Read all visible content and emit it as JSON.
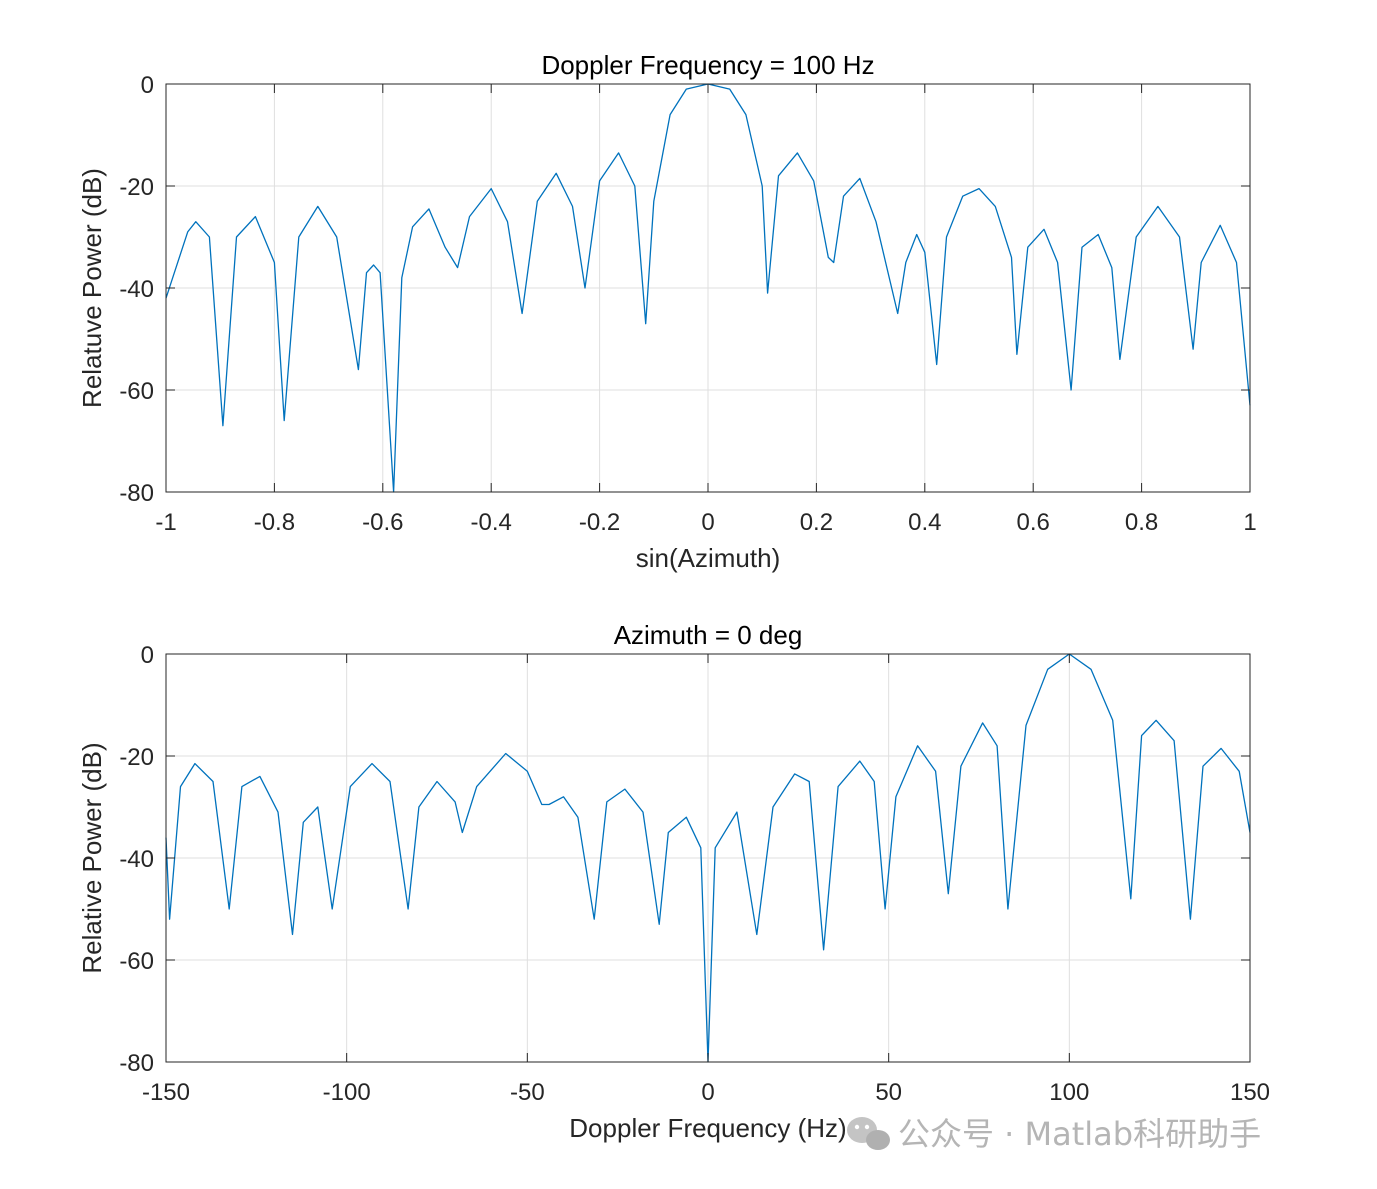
{
  "watermark": {
    "text": "公众号 · Matlab科研助手",
    "icon": "wechat-icon"
  },
  "chart_data": [
    {
      "type": "line",
      "title": "Doppler Frequency = 100 Hz",
      "xlabel": "sin(Azimuth)",
      "ylabel": "Relatuve Power (dB)",
      "xlim": [
        -1,
        1
      ],
      "ylim": [
        -80,
        0
      ],
      "xticks": [
        -1,
        -0.8,
        -0.6,
        -0.4,
        -0.2,
        0,
        0.2,
        0.4,
        0.6,
        0.8,
        1
      ],
      "xtick_labels": [
        "-1",
        "-0.8",
        "-0.6",
        "-0.4",
        "-0.2",
        "0",
        "0.2",
        "0.4",
        "0.6",
        "0.8",
        "1"
      ],
      "yticks": [
        0,
        -20,
        -40,
        -60,
        -80
      ],
      "ytick_labels": [
        "0",
        "-20",
        "-40",
        "-60",
        "-80"
      ],
      "grid": true,
      "series": [
        {
          "color": "#0072bd",
          "x": [
            -1.0,
            -0.96,
            -0.945,
            -0.92,
            -0.895,
            -0.87,
            -0.835,
            -0.8,
            -0.782,
            -0.755,
            -0.72,
            -0.685,
            -0.645,
            -0.63,
            -0.617,
            -0.605,
            -0.58,
            -0.565,
            -0.545,
            -0.515,
            -0.485,
            -0.462,
            -0.44,
            -0.4,
            -0.37,
            -0.343,
            -0.315,
            -0.28,
            -0.25,
            -0.227,
            -0.2,
            -0.165,
            -0.135,
            -0.115,
            -0.1,
            -0.07,
            -0.04,
            0.0,
            0.04,
            0.07,
            0.1,
            0.11,
            0.13,
            0.165,
            0.195,
            0.222,
            0.232,
            0.25,
            0.28,
            0.31,
            0.35,
            0.365,
            0.385,
            0.4,
            0.422,
            0.44,
            0.47,
            0.5,
            0.53,
            0.56,
            0.57,
            0.59,
            0.62,
            0.645,
            0.67,
            0.69,
            0.72,
            0.745,
            0.76,
            0.79,
            0.83,
            0.87,
            0.895,
            0.91,
            0.945,
            0.975,
            1.0
          ],
          "y": [
            -42,
            -29,
            -27,
            -30,
            -67,
            -30,
            -26,
            -35,
            -66,
            -30,
            -24,
            -30,
            -56,
            -37,
            -35.5,
            -37,
            -80,
            -38,
            -28,
            -24.5,
            -32,
            -36,
            -26,
            -20.5,
            -27,
            -45,
            -23,
            -17.5,
            -24,
            -40,
            -19,
            -13.5,
            -20,
            -47,
            -23,
            -6,
            -1,
            0,
            -1,
            -6,
            -20,
            -41,
            -18,
            -13.5,
            -19,
            -34,
            -35,
            -22,
            -18.5,
            -27,
            -45,
            -35,
            -29.5,
            -33,
            -55,
            -30,
            -22,
            -20.5,
            -24,
            -34,
            -53,
            -32,
            -28.5,
            -35,
            -60,
            -32,
            -29.5,
            -36,
            -54,
            -30,
            -24,
            -30,
            -52,
            -35,
            -27.7,
            -35,
            -63
          ]
        }
      ]
    },
    {
      "type": "line",
      "title": "Azimuth = 0 deg",
      "xlabel": "Doppler Frequency (Hz)",
      "ylabel": "Relative Power (dB)",
      "xlim": [
        -150,
        150
      ],
      "ylim": [
        -80,
        0
      ],
      "xticks": [
        -150,
        -100,
        -50,
        0,
        50,
        100,
        150
      ],
      "xtick_labels": [
        "-150",
        "-100",
        "-50",
        "0",
        "50",
        "100",
        "150"
      ],
      "yticks": [
        0,
        -20,
        -40,
        -60,
        -80
      ],
      "ytick_labels": [
        "0",
        "-20",
        "-40",
        "-60",
        "-80"
      ],
      "grid": true,
      "series": [
        {
          "color": "#0072bd",
          "x": [
            -150,
            -149,
            -146,
            -142,
            -137,
            -132.5,
            -129,
            -124,
            -119,
            -115,
            -112,
            -108,
            -104,
            -99,
            -93,
            -88,
            -83,
            -80,
            -75,
            -70,
            -68,
            -64,
            -56,
            -50,
            -46,
            -44,
            -40,
            -36,
            -31.5,
            -28,
            -23,
            -18,
            -13.5,
            -11,
            -6,
            -2,
            0,
            2,
            8,
            13.5,
            18,
            24,
            28,
            32,
            36,
            42,
            46,
            49,
            52,
            58,
            63,
            66.5,
            70,
            76,
            80,
            83,
            88,
            94,
            100,
            106,
            112,
            117,
            120,
            124,
            129,
            133.5,
            137,
            142,
            147,
            150
          ],
          "y": [
            -36,
            -52,
            -26,
            -21.5,
            -25,
            -50,
            -26,
            -24,
            -31,
            -55,
            -33,
            -30,
            -50,
            -26,
            -21.5,
            -25,
            -50,
            -30,
            -25,
            -29,
            -35,
            -26,
            -19.5,
            -23,
            -29.5,
            -29.5,
            -28,
            -32,
            -52,
            -29,
            -26.5,
            -31,
            -53,
            -35,
            -32,
            -38,
            -80,
            -38,
            -31,
            -55,
            -30,
            -23.5,
            -25,
            -58,
            -26,
            -21,
            -25,
            -50,
            -28,
            -18,
            -23,
            -47,
            -22,
            -13.5,
            -18,
            -50,
            -14,
            -3,
            0,
            -3,
            -13,
            -48,
            -16,
            -13,
            -17,
            -52,
            -22,
            -18.5,
            -23,
            -35
          ]
        }
      ]
    }
  ]
}
